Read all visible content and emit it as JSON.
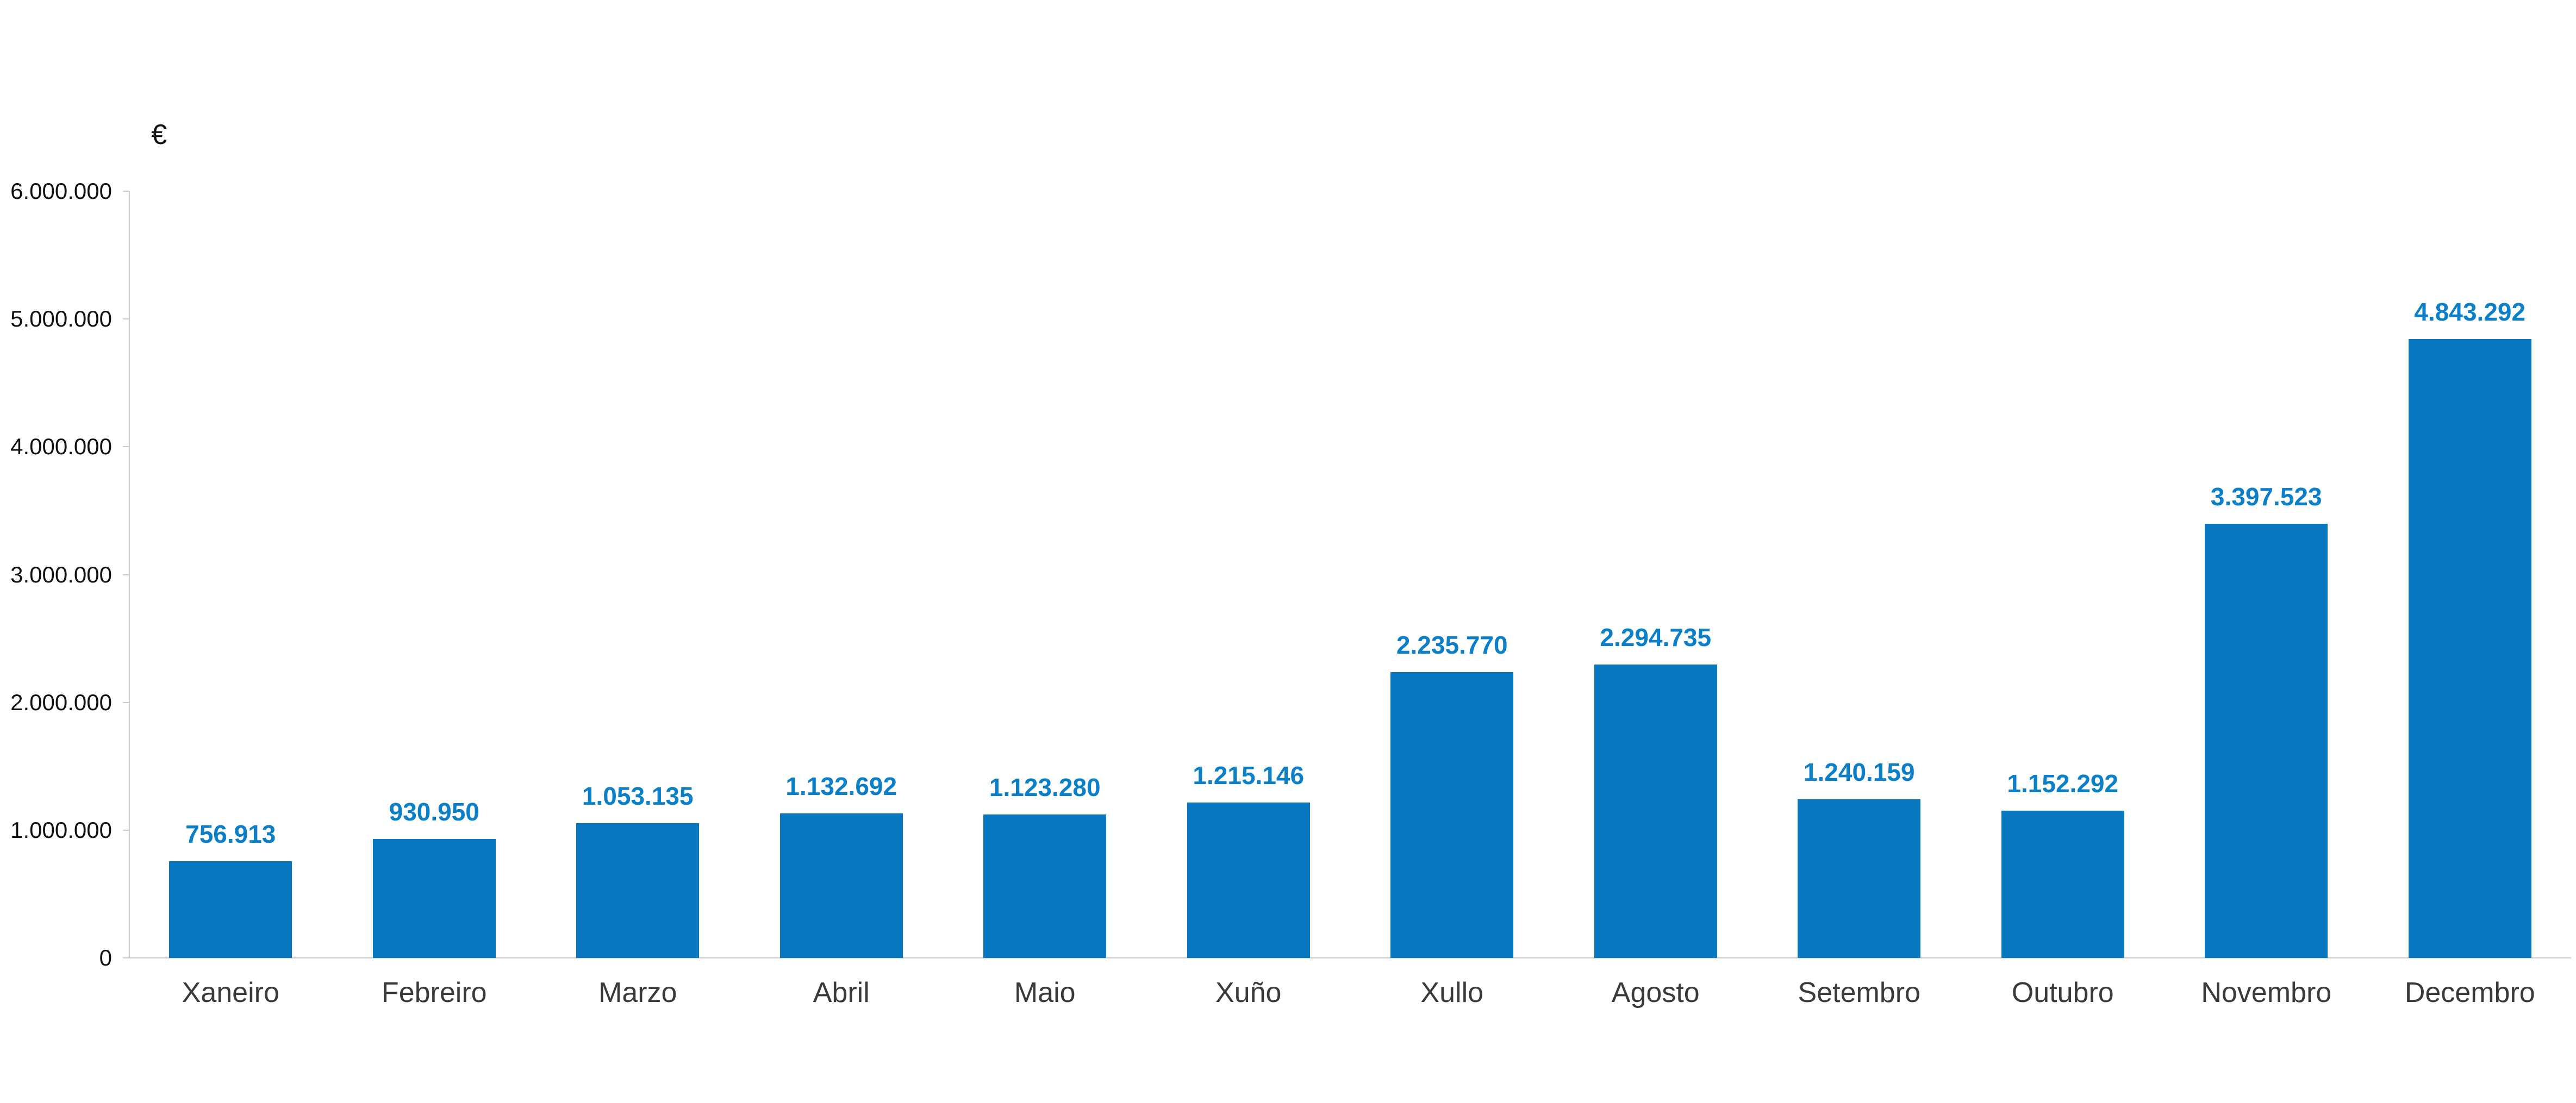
{
  "chart_data": {
    "type": "bar",
    "title": "",
    "ylabel": "€",
    "xlabel": "",
    "ylim": [
      0,
      6000000
    ],
    "y_tick_interval": 1000000,
    "y_tick_labels": [
      "6.000.000",
      "5.000.000",
      "4.000.000",
      "3.000.000",
      "2.000.000",
      "1.000.000",
      "0"
    ],
    "categories": [
      "Xaneiro",
      "Febreiro",
      "Marzo",
      "Abril",
      "Maio",
      "Xuño",
      "Xullo",
      "Agosto",
      "Setembro",
      "Outubro",
      "Novembro",
      "Decembro"
    ],
    "values": [
      756913,
      930950,
      1053135,
      1132692,
      1123280,
      1215146,
      2235770,
      2294735,
      1240159,
      1152292,
      3397523,
      4843292
    ],
    "value_labels": [
      "756.913",
      "930.950",
      "1.053.135",
      "1.132.692",
      "1.123.280",
      "1.215.146",
      "2.235.770",
      "2.294.735",
      "1.240.159",
      "1.152.292",
      "3.397.523",
      "4.843.292"
    ],
    "grid": false,
    "legend": "none",
    "colors": {
      "bar": "#0879c1",
      "value_label": "#0b7fc7",
      "axis": "#cccccc",
      "y_tick_label": "#111111",
      "category_label": "#3a3a3a"
    }
  }
}
